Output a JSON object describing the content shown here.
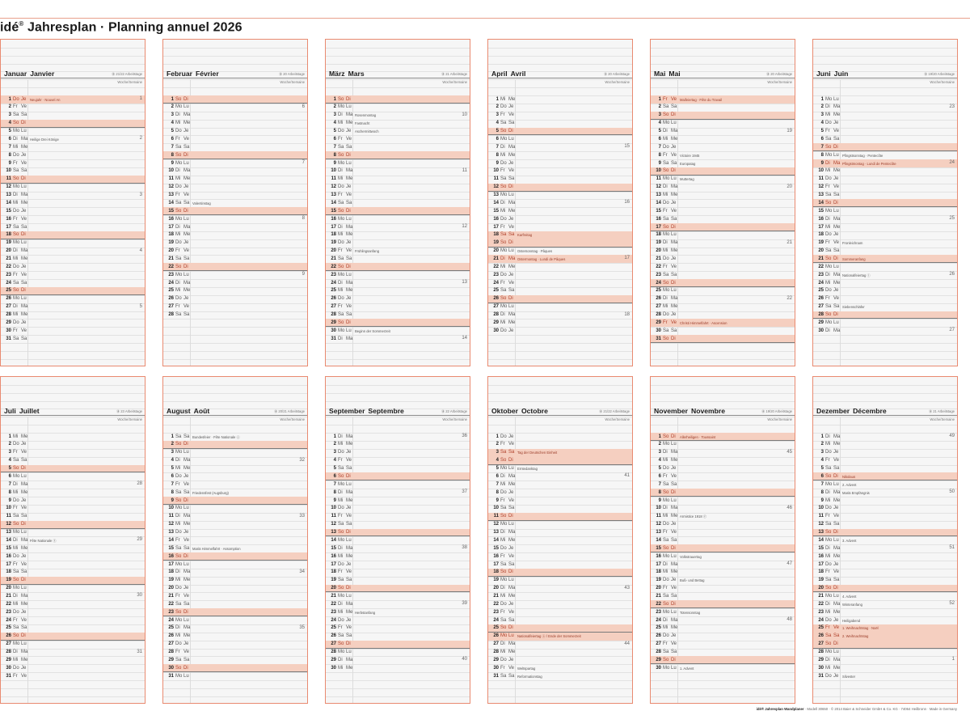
{
  "header": {
    "brand": "idé",
    "reg": "®",
    "title": "Jahresplan · Planning annuel 2026"
  },
  "labels": {
    "week": "Woche/Semaine"
  },
  "colors": {
    "accent": "#e98a70",
    "highlight": "#f5cfc0",
    "panel_bg": "#f6f6f6"
  },
  "months": [
    {
      "de": "Januar",
      "fr": "Janvier",
      "workdays": "⑱ 21/22 Arbeitstage",
      "start": 3,
      "days": 31,
      "notes": {
        "1": "Neujahr · Nouvel An",
        "6": "Heilige Drei Könige"
      },
      "holidays": [
        1
      ],
      "weeks": {
        "1": "1",
        "6": "2",
        "13": "3",
        "20": "4",
        "27": "5"
      }
    },
    {
      "de": "Februar",
      "fr": "Février",
      "workdays": "⑱ 20 Arbeitstage",
      "start": 6,
      "days": 28,
      "notes": {
        "14": "Valentinstag"
      },
      "holidays": [],
      "weeks": {
        "2": "6",
        "9": "7",
        "16": "8",
        "23": "9"
      }
    },
    {
      "de": "März",
      "fr": "Mars",
      "workdays": "⑱ 21 Arbeitstage",
      "start": 6,
      "days": 31,
      "notes": {
        "3": "Rosenmontag",
        "4": "Fastnacht",
        "5": "Aschermittwoch",
        "20": "Frühlingsanfang",
        "30": "Beginn der Sommerzeit"
      },
      "holidays": [],
      "weeks": {
        "3": "10",
        "10": "11",
        "17": "12",
        "24": "13",
        "31": "14"
      }
    },
    {
      "de": "April",
      "fr": "Avril",
      "workdays": "⑱ 20 Arbeitstage",
      "start": 2,
      "days": 30,
      "notes": {
        "18": "Karfreitag",
        "20": "Ostersonntag · Pâques",
        "21": "Ostermontag · Lundi de Pâques"
      },
      "holidays": [
        18,
        21
      ],
      "weeks": {
        "7": "15",
        "14": "16",
        "21": "17",
        "28": "18"
      }
    },
    {
      "de": "Mai",
      "fr": "Mai",
      "workdays": "⑱ 20 Arbeitstage",
      "start": 4,
      "days": 31,
      "notes": {
        "1": "Maifeiertag · Fête du Travail",
        "8": "Victoire 1945",
        "9": "Europatag",
        "11": "Muttertag",
        "29": "Christi Himmelfahrt · Ascension"
      },
      "holidays": [
        1,
        29
      ],
      "weeks": {
        "5": "19",
        "12": "20",
        "19": "21",
        "26": "22"
      }
    },
    {
      "de": "Juni",
      "fr": "Juin",
      "workdays": "⑱ 19/20 Arbeitstage",
      "start": 0,
      "days": 30,
      "notes": {
        "8": "Pfingstsonntag · Pentecôte",
        "9": "Pfingstmontag · Lundi de Pentecôte",
        "19": "Fronleichnam",
        "21": "Sommeranfang",
        "23": "Nationalfeiertag ⓛ",
        "27": "Siebenschläfer"
      },
      "holidays": [
        9
      ],
      "weeks": {
        "2": "23",
        "9": "24",
        "16": "25",
        "23": "26",
        "30": "27"
      }
    },
    {
      "de": "Juli",
      "fr": "Juillet",
      "workdays": "⑱ 23 Arbeitstage",
      "start": 2,
      "days": 31,
      "notes": {
        "14": "Fête Nationale ⓕ"
      },
      "holidays": [],
      "weeks": {
        "7": "28",
        "14": "29",
        "21": "30",
        "28": "31"
      }
    },
    {
      "de": "August",
      "fr": "Août",
      "workdays": "⑱ 20/21 Arbeitstage",
      "start": 5,
      "days": 31,
      "notes": {
        "1": "Bundesfeier · Fête Nationale ⓒ",
        "8": "Friedensfest (Augsburg)",
        "15": "Mariä Himmelfahrt · Assomption"
      },
      "holidays": [],
      "weeks": {
        "4": "32",
        "11": "33",
        "18": "34",
        "25": "35"
      }
    },
    {
      "de": "September",
      "fr": "Septembre",
      "workdays": "⑱ 22 Arbeitstage",
      "start": 1,
      "days": 30,
      "notes": {
        "23": "Herbstanfang"
      },
      "holidays": [],
      "weeks": {
        "1": "36",
        "8": "37",
        "15": "38",
        "22": "39",
        "29": "40"
      }
    },
    {
      "de": "Oktober",
      "fr": "Octobre",
      "workdays": "⑱ 21/22 Arbeitstage",
      "start": 3,
      "days": 31,
      "notes": {
        "3": "Tag der Deutschen Einheit",
        "5": "Erntedanktag",
        "26": "Nationalfeiertag ⓐ / Ende der Sommerzeit",
        "30": "Weltspartag",
        "31": "Reformationstag"
      },
      "holidays": [
        3,
        26
      ],
      "weeks": {
        "6": "41",
        "20": "43",
        "27": "44"
      }
    },
    {
      "de": "November",
      "fr": "Novembre",
      "workdays": "⑱ 19/20 Arbeitstage",
      "start": 6,
      "days": 30,
      "notes": {
        "1": "Allerheiligen · Toussaint",
        "11": "Armistice 1918 ⓕ",
        "16": "Volkstrauertag",
        "19": "Buß- und Bettag",
        "23": "Totensonntag",
        "30": "1. Advent"
      },
      "holidays": [],
      "weeks": {
        "3": "45",
        "10": "46",
        "17": "47",
        "24": "48"
      }
    },
    {
      "de": "Dezember",
      "fr": "Décembre",
      "workdays": "⑱ 21 Arbeitstage",
      "start": 1,
      "days": 31,
      "notes": {
        "6": "Nikolaus",
        "7": "2. Advent",
        "8": "Mariä Empfängnis",
        "14": "3. Advent",
        "21": "4. Advent",
        "22": "Winteranfang",
        "24": "Heiligabend",
        "25": "1. Weihnachtstag · Noël",
        "26": "2. Weihnachtstag",
        "31": "Silvester"
      },
      "holidays": [
        25,
        26
      ],
      "weeks": {
        "1": "49",
        "8": "50",
        "15": "51",
        "22": "52",
        "29": "1"
      }
    }
  ],
  "weekdays": [
    [
      "Mo",
      "Lu"
    ],
    [
      "Di",
      "Ma"
    ],
    [
      "Mi",
      "Me"
    ],
    [
      "Do",
      "Je"
    ],
    [
      "Fr",
      "Ve"
    ],
    [
      "Sa",
      "Sa"
    ],
    [
      "So",
      "Di"
    ]
  ],
  "footer": {
    "product": "idé® Jahresplan Wandplaner",
    "rest": " · Modell 30650 · © 2014 Baier & Schneider GmbH & Co. KG · 74064 Heilbronn · Made in Germany"
  }
}
